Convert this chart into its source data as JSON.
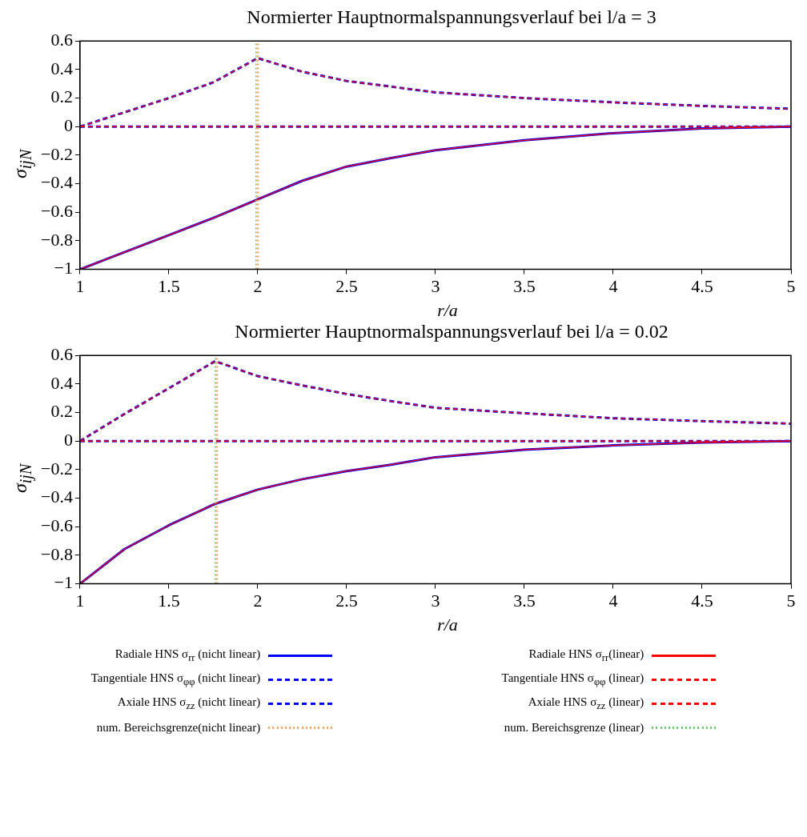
{
  "chart_data": [
    {
      "type": "line",
      "title": "Normierter Hauptnormalspannungsverlauf bei l/a = 3",
      "xlabel": "r/a",
      "ylabel": "σ$_{ijN}$",
      "x": [
        1,
        1.25,
        1.5,
        1.75,
        2,
        2.25,
        2.5,
        2.75,
        3,
        3.5,
        4,
        4.5,
        5
      ],
      "xlim": [
        1,
        5
      ],
      "xticks": [
        1,
        1.5,
        2,
        2.5,
        3,
        3.5,
        4,
        4.5,
        5
      ],
      "ylim": [
        -1,
        0.6
      ],
      "yticks": [
        -1,
        -0.8,
        -0.6,
        -0.4,
        -0.2,
        0,
        0.2,
        0.4,
        0.6
      ],
      "grid": false,
      "legend": false,
      "series": [
        {
          "color": "#0000ff",
          "line_style": "solid",
          "values": [
            -1,
            -0.88,
            -0.76,
            -0.64,
            -0.51,
            -0.38,
            -0.28,
            -0.22,
            -0.165,
            -0.096,
            -0.046,
            -0.013,
            0
          ]
        },
        {
          "color": "#0000ff",
          "line_style": "dashed",
          "values": [
            0,
            0.1,
            0.2,
            0.31,
            0.48,
            0.385,
            0.32,
            0.28,
            0.24,
            0.2,
            0.17,
            0.145,
            0.125
          ]
        },
        {
          "color": "#0000ff",
          "line_style": "dashed",
          "values": [
            0,
            0,
            0,
            0,
            0,
            0,
            0,
            0,
            0,
            0,
            0,
            0,
            0
          ]
        },
        {
          "color": "#f4a460",
          "line_style": "dotted",
          "x": [
            2,
            2
          ],
          "values": [
            -1,
            0.6
          ]
        },
        {
          "color": "#ff0000",
          "line_style": "solid",
          "values": [
            -1,
            -0.88,
            -0.76,
            -0.64,
            -0.51,
            -0.38,
            -0.28,
            -0.22,
            -0.165,
            -0.096,
            -0.046,
            -0.013,
            0
          ]
        },
        {
          "color": "#ff0000",
          "line_style": "dashed",
          "values": [
            0,
            0.1,
            0.2,
            0.31,
            0.48,
            0.385,
            0.32,
            0.28,
            0.24,
            0.2,
            0.17,
            0.145,
            0.125
          ]
        },
        {
          "color": "#ff0000",
          "line_style": "dashed",
          "values": [
            0,
            0,
            0,
            0,
            0,
            0,
            0,
            0,
            0,
            0,
            0,
            0,
            0
          ]
        },
        {
          "color": "#66cc66",
          "line_style": "dotted",
          "x": [
            1.99,
            1.99
          ],
          "values": [
            -1,
            0.6
          ]
        }
      ]
    },
    {
      "type": "line",
      "title": "Normierter Hauptnormalspannungsverlauf bei l/a = 0.02",
      "xlabel": "r/a",
      "ylabel": "σ$_{ijN}$",
      "x": [
        1,
        1.25,
        1.5,
        1.76,
        2,
        2.25,
        2.5,
        2.75,
        3,
        3.5,
        4,
        4.5,
        5
      ],
      "xlim": [
        1,
        5
      ],
      "xticks": [
        1,
        1.5,
        2,
        2.5,
        3,
        3.5,
        4,
        4.5,
        5
      ],
      "ylim": [
        -1,
        0.6
      ],
      "yticks": [
        -1,
        -0.8,
        -0.6,
        -0.4,
        -0.2,
        0,
        0.2,
        0.4,
        0.6
      ],
      "grid": false,
      "legend": "bottom",
      "series": [
        {
          "name": "Radiale HNS σ$_{rr}$ (nicht linear)",
          "color": "#0000ff",
          "line_style": "solid",
          "values": [
            -1,
            -0.757,
            -0.59,
            -0.44,
            -0.34,
            -0.267,
            -0.21,
            -0.165,
            -0.113,
            -0.06,
            -0.03,
            -0.01,
            0
          ]
        },
        {
          "name": "Tangentiale HNS σ$_{φφ}$ (nicht linear)",
          "color": "#0000ff",
          "line_style": "dashed",
          "values": [
            0,
            0.19,
            0.37,
            0.56,
            0.455,
            0.39,
            0.33,
            0.28,
            0.233,
            0.195,
            0.16,
            0.14,
            0.122
          ]
        },
        {
          "name": "Axiale HNS σ$_{zz}$ (nicht linear)",
          "color": "#0000ff",
          "line_style": "dashed",
          "values": [
            0,
            0,
            0,
            0,
            0,
            0,
            0,
            0,
            0,
            0,
            0,
            0,
            0
          ]
        },
        {
          "name": "num. Bereichsgrenze(nicht linear)",
          "color": "#f4a460",
          "line_style": "dotted",
          "x": [
            1.77,
            1.77
          ],
          "values": [
            -1,
            0.6
          ]
        },
        {
          "name": "Radiale HNS σ$_{rr}$(linear)",
          "color": "#ff0000",
          "line_style": "solid",
          "values": [
            -1,
            -0.757,
            -0.59,
            -0.44,
            -0.34,
            -0.267,
            -0.21,
            -0.165,
            -0.113,
            -0.06,
            -0.03,
            -0.01,
            0
          ]
        },
        {
          "name": "Tangentiale HNS σ$_{φφ}$ (linear)",
          "color": "#ff0000",
          "line_style": "dashed",
          "values": [
            0,
            0.19,
            0.37,
            0.56,
            0.455,
            0.39,
            0.33,
            0.28,
            0.233,
            0.195,
            0.16,
            0.14,
            0.122
          ]
        },
        {
          "name": "Axiale HNS σ$_{zz}$ (linear)",
          "color": "#ff0000",
          "line_style": "dashed",
          "values": [
            0,
            0,
            0,
            0,
            0,
            0,
            0,
            0,
            0,
            0,
            0,
            0,
            0
          ]
        },
        {
          "name": "num. Bereichsgrenze (linear)",
          "color": "#66cc66",
          "line_style": "dotted",
          "x": [
            1.76,
            1.76
          ],
          "values": [
            -1,
            0.6
          ]
        }
      ]
    }
  ]
}
